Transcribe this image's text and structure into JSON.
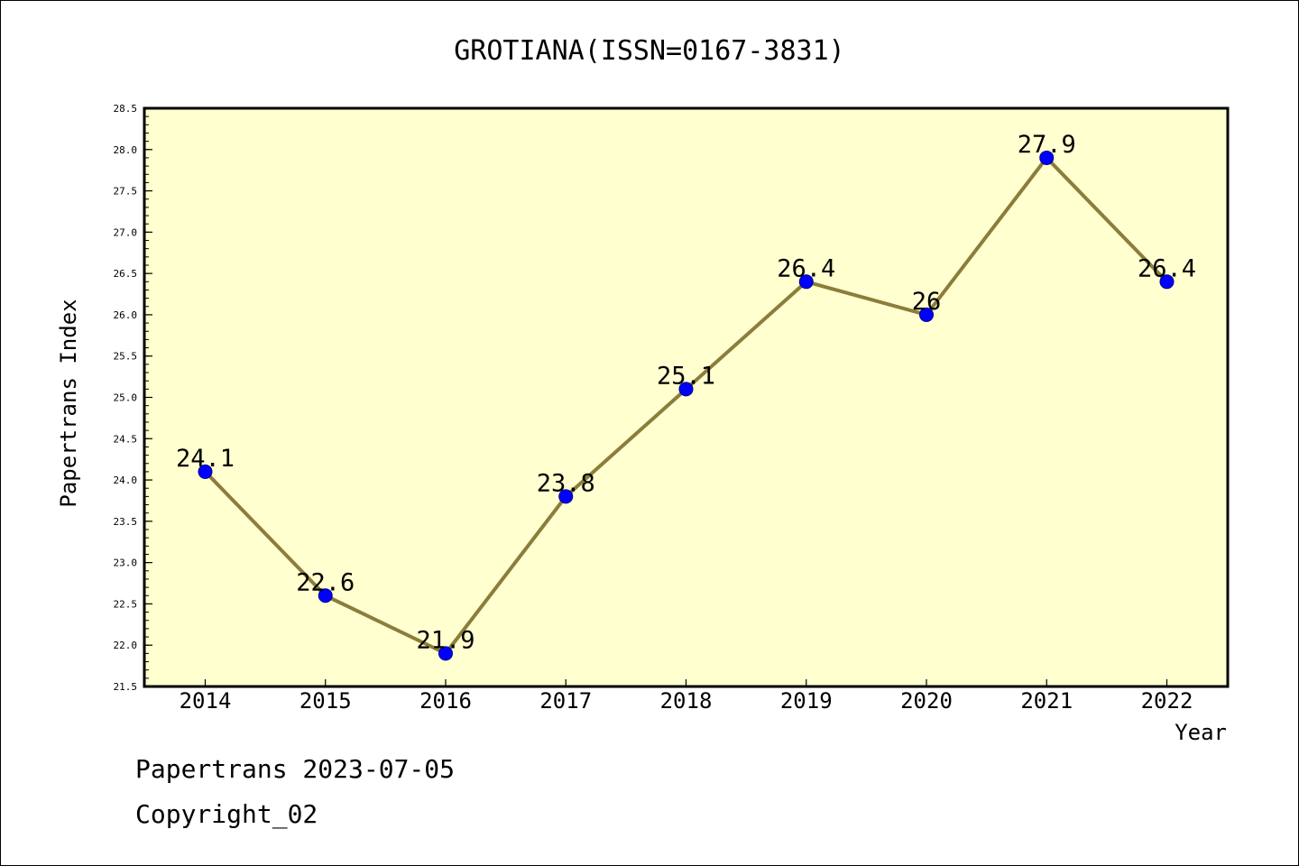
{
  "chart_data": {
    "type": "line",
    "title": "GROTIANA(ISSN=0167-3831)",
    "xlabel": "Year",
    "ylabel": "Papertrans Index",
    "categories": [
      "2014",
      "2015",
      "2016",
      "2017",
      "2018",
      "2019",
      "2020",
      "2021",
      "2022"
    ],
    "series": [
      {
        "values": [
          24.1,
          22.6,
          21.9,
          23.8,
          25.1,
          26.4,
          26,
          27.9,
          26.4
        ]
      }
    ],
    "data_labels": [
      "24.1",
      "22.6",
      "21.9",
      "23.8",
      "25.1",
      "26.4",
      "26",
      "27.9",
      "26.4"
    ],
    "ylim": [
      21.5,
      28.5
    ],
    "yticks": [
      "21.5",
      "22.0",
      "22.5",
      "23.0",
      "23.5",
      "24.0",
      "24.5",
      "25.0",
      "25.5",
      "26.0",
      "26.5",
      "27.0",
      "27.5",
      "28.0",
      "28.5"
    ],
    "grid": false,
    "colors": {
      "plot_background": "#ffffd0",
      "line": "#8b7d3a",
      "marker": "#0000ff"
    }
  },
  "footer": {
    "line1": "Papertrans 2023-07-05",
    "line2": "Copyright_02"
  }
}
